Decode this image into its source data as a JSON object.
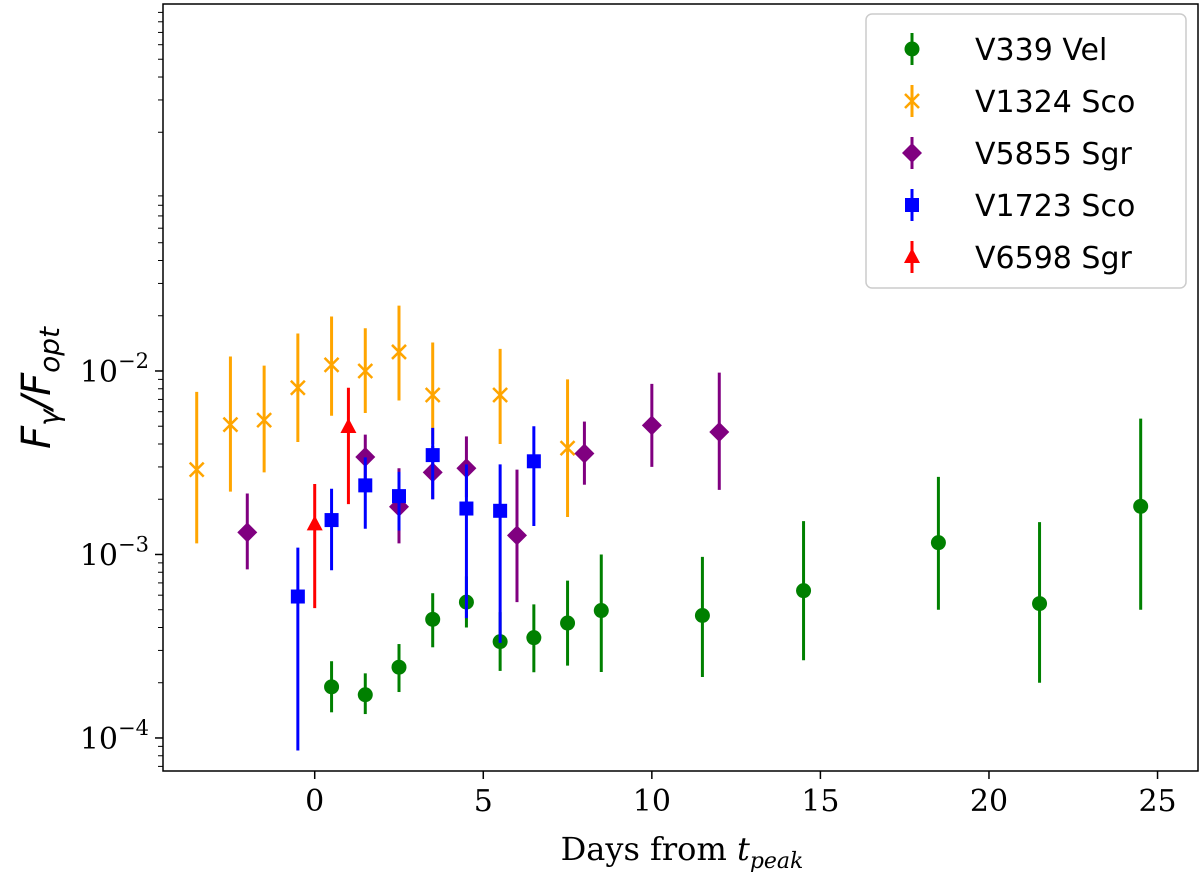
{
  "chart_data": {
    "type": "scatter",
    "title": "",
    "xlabel": "Days from t_peak",
    "xlabel_parts": {
      "main": "Days from ",
      "var": "t",
      "sub": "peak"
    },
    "ylabel": "F_γ/F_opt",
    "ylabel_parts": {
      "num": "F",
      "num_sub": "γ",
      "slash": "/",
      "den": "F",
      "den_sub": "opt"
    },
    "xlim": [
      -4.5,
      26.2
    ],
    "ylim_log10": [
      -4.18,
      0
    ],
    "yscale": "log",
    "xticks": [
      0,
      5,
      10,
      15,
      20,
      25
    ],
    "yticks_exp": [
      -4,
      -3,
      -2
    ],
    "ytick_base": "10",
    "grid": false,
    "legend_position": "top-right",
    "series": [
      {
        "name": "V339 Vel",
        "color": "#008000",
        "marker": "circle",
        "points": [
          {
            "x": 0.5,
            "y": 0.00019,
            "lo": 0.000138,
            "hi": 0.000262
          },
          {
            "x": 1.5,
            "y": 0.000172,
            "lo": 0.000135,
            "hi": 0.000225
          },
          {
            "x": 2.5,
            "y": 0.000243,
            "lo": 0.000178,
            "hi": 0.000325
          },
          {
            "x": 3.5,
            "y": 0.000443,
            "lo": 0.000312,
            "hi": 0.000615
          },
          {
            "x": 4.5,
            "y": 0.00055,
            "lo": 0.0004,
            "hi": 0.00076
          },
          {
            "x": 5.5,
            "y": 0.000335,
            "lo": 0.000232,
            "hi": 0.000485
          },
          {
            "x": 6.5,
            "y": 0.000352,
            "lo": 0.000228,
            "hi": 0.000535
          },
          {
            "x": 7.5,
            "y": 0.000423,
            "lo": 0.000248,
            "hi": 0.00072
          },
          {
            "x": 8.5,
            "y": 0.000495,
            "lo": 0.000229,
            "hi": 0.001
          },
          {
            "x": 11.5,
            "y": 0.000465,
            "lo": 0.000215,
            "hi": 0.00097
          },
          {
            "x": 14.5,
            "y": 0.000635,
            "lo": 0.000265,
            "hi": 0.00152
          },
          {
            "x": 18.5,
            "y": 0.00116,
            "lo": 0.0005,
            "hi": 0.00265
          },
          {
            "x": 21.5,
            "y": 0.00054,
            "lo": 0.0002,
            "hi": 0.0015
          },
          {
            "x": 24.5,
            "y": 0.00183,
            "lo": 0.0005,
            "hi": 0.0055
          }
        ]
      },
      {
        "name": "V1324 Sco",
        "color": "#ffa500",
        "marker": "x",
        "points": [
          {
            "x": -3.5,
            "y": 0.0029,
            "lo": 0.00115,
            "hi": 0.0077
          },
          {
            "x": -2.5,
            "y": 0.0051,
            "lo": 0.0022,
            "hi": 0.012
          },
          {
            "x": -1.5,
            "y": 0.0054,
            "lo": 0.0028,
            "hi": 0.0107
          },
          {
            "x": -0.5,
            "y": 0.0081,
            "lo": 0.0041,
            "hi": 0.016
          },
          {
            "x": 0.5,
            "y": 0.0108,
            "lo": 0.0057,
            "hi": 0.0198
          },
          {
            "x": 1.5,
            "y": 0.01,
            "lo": 0.0059,
            "hi": 0.0171
          },
          {
            "x": 2.5,
            "y": 0.0127,
            "lo": 0.0069,
            "hi": 0.0227
          },
          {
            "x": 3.5,
            "y": 0.0074,
            "lo": 0.004,
            "hi": 0.0143
          },
          {
            "x": 5.5,
            "y": 0.0074,
            "lo": 0.004,
            "hi": 0.0132
          },
          {
            "x": 7.5,
            "y": 0.0038,
            "lo": 0.0016,
            "hi": 0.009
          }
        ]
      },
      {
        "name": "V5855 Sgr",
        "color": "#800080",
        "marker": "diamond",
        "points": [
          {
            "x": -2.0,
            "y": 0.00132,
            "lo": 0.00083,
            "hi": 0.00215
          },
          {
            "x": 1.5,
            "y": 0.0034,
            "lo": 0.0024,
            "hi": 0.0045
          },
          {
            "x": 2.5,
            "y": 0.00182,
            "lo": 0.00115,
            "hi": 0.00295
          },
          {
            "x": 3.5,
            "y": 0.0028,
            "lo": 0.002,
            "hi": 0.0039
          },
          {
            "x": 4.5,
            "y": 0.00295,
            "lo": 0.00205,
            "hi": 0.0044
          },
          {
            "x": 6.0,
            "y": 0.00127,
            "lo": 0.00055,
            "hi": 0.0029
          },
          {
            "x": 8.0,
            "y": 0.00355,
            "lo": 0.0024,
            "hi": 0.0053
          },
          {
            "x": 10.0,
            "y": 0.00505,
            "lo": 0.003,
            "hi": 0.0085
          },
          {
            "x": 12.0,
            "y": 0.00465,
            "lo": 0.00225,
            "hi": 0.0098
          }
        ]
      },
      {
        "name": "V1723 Sco",
        "color": "#0000ff",
        "marker": "square",
        "points": [
          {
            "x": -0.5,
            "y": 0.00059,
            "lo": 8.55e-05,
            "hi": 0.00109
          },
          {
            "x": 0.5,
            "y": 0.00154,
            "lo": 0.00082,
            "hi": 0.00228
          },
          {
            "x": 1.5,
            "y": 0.00238,
            "lo": 0.00138,
            "hi": 0.00338
          },
          {
            "x": 2.5,
            "y": 0.00208,
            "lo": 0.00135,
            "hi": 0.00282
          },
          {
            "x": 3.5,
            "y": 0.00348,
            "lo": 0.002,
            "hi": 0.0049
          },
          {
            "x": 4.5,
            "y": 0.00178,
            "lo": 0.00045,
            "hi": 0.0031
          },
          {
            "x": 5.5,
            "y": 0.00173,
            "lo": 0.00033,
            "hi": 0.0031
          },
          {
            "x": 6.5,
            "y": 0.00322,
            "lo": 0.00143,
            "hi": 0.005
          }
        ]
      },
      {
        "name": "V6598 Sgr",
        "color": "#ff0000",
        "marker": "triangle",
        "points": [
          {
            "x": 0.0,
            "y": 0.00146,
            "lo": 0.00051,
            "hi": 0.00242
          },
          {
            "x": 1.0,
            "y": 0.00495,
            "lo": 0.00188,
            "hi": 0.0081
          }
        ]
      }
    ]
  }
}
